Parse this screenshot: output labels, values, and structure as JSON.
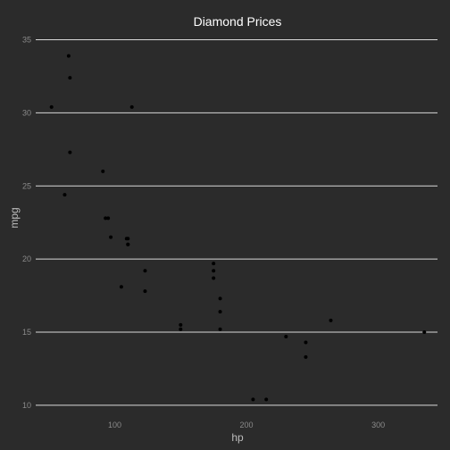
{
  "chart_data": {
    "type": "scatter",
    "title": "Diamond Prices",
    "xlabel": "hp",
    "ylabel": "mpg",
    "xlim": [
      40,
      345
    ],
    "ylim": [
      9.2,
      36.5
    ],
    "x_ticks": [
      100,
      200,
      300
    ],
    "y_ticks": [
      10,
      15,
      20,
      25,
      30,
      35
    ],
    "grid": {
      "horizontal_major": true,
      "vertical": false
    },
    "background_color": "#2b2b2b",
    "grid_color": "#d9d9d9",
    "point_color": "#000000",
    "points": [
      {
        "x": 110,
        "y": 21.0
      },
      {
        "x": 110,
        "y": 21.0
      },
      {
        "x": 93,
        "y": 22.8
      },
      {
        "x": 110,
        "y": 21.4
      },
      {
        "x": 175,
        "y": 18.7
      },
      {
        "x": 105,
        "y": 18.1
      },
      {
        "x": 245,
        "y": 14.3
      },
      {
        "x": 62,
        "y": 24.4
      },
      {
        "x": 95,
        "y": 22.8
      },
      {
        "x": 123,
        "y": 19.2
      },
      {
        "x": 123,
        "y": 17.8
      },
      {
        "x": 180,
        "y": 16.4
      },
      {
        "x": 180,
        "y": 17.3
      },
      {
        "x": 180,
        "y": 15.2
      },
      {
        "x": 205,
        "y": 10.4
      },
      {
        "x": 215,
        "y": 10.4
      },
      {
        "x": 230,
        "y": 14.7
      },
      {
        "x": 66,
        "y": 32.4
      },
      {
        "x": 52,
        "y": 30.4
      },
      {
        "x": 65,
        "y": 33.9
      },
      {
        "x": 97,
        "y": 21.5
      },
      {
        "x": 150,
        "y": 15.5
      },
      {
        "x": 150,
        "y": 15.2
      },
      {
        "x": 245,
        "y": 13.3
      },
      {
        "x": 175,
        "y": 19.2
      },
      {
        "x": 66,
        "y": 27.3
      },
      {
        "x": 91,
        "y": 26.0
      },
      {
        "x": 113,
        "y": 30.4
      },
      {
        "x": 264,
        "y": 15.8
      },
      {
        "x": 175,
        "y": 19.7
      },
      {
        "x": 335,
        "y": 15.0
      },
      {
        "x": 109,
        "y": 21.4
      }
    ]
  }
}
